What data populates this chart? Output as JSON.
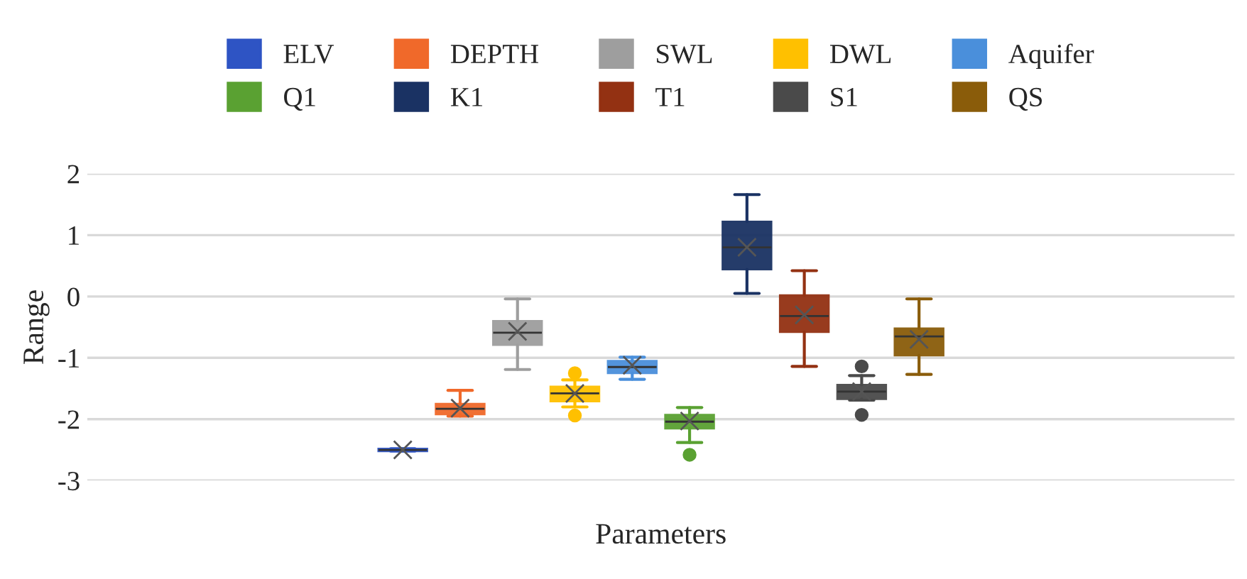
{
  "chart_data": {
    "type": "box",
    "xlabel": "Parameters",
    "ylabel": "Range",
    "categories": [
      null
    ],
    "ylim": [
      -3,
      2
    ],
    "yticks": [
      -3,
      -2,
      -1,
      0,
      1,
      2
    ],
    "grid": "y",
    "legend": "top",
    "marker": "cross",
    "series": [
      {
        "name": "ELV",
        "color": "#2e54c4",
        "boxes": [
          {
            "low": -2.52,
            "q1": -2.52,
            "median": -2.5,
            "q3": -2.48,
            "high": -2.48,
            "mean": -2.5
          }
        ]
      },
      {
        "name": "DEPTH",
        "color": "#f0692a",
        "boxes": [
          {
            "low": -1.95,
            "q1": -1.92,
            "median": -1.83,
            "q3": -1.75,
            "high": -1.53,
            "mean": -1.82
          }
        ]
      },
      {
        "name": "SWL",
        "color": "#9e9e9e",
        "boxes": [
          {
            "low": -1.19,
            "q1": -0.79,
            "median": -0.59,
            "q3": -0.4,
            "high": -0.04,
            "mean": -0.57
          }
        ]
      },
      {
        "name": "DWL",
        "color": "#ffc000",
        "boxes": [
          {
            "low": -1.8,
            "q1": -1.71,
            "median": -1.58,
            "q3": -1.47,
            "high": -1.36,
            "mean": -1.58,
            "outliers": [
              -1.25,
              -1.94
            ]
          }
        ]
      },
      {
        "name": "Aquifer",
        "color": "#4a8fdb",
        "boxes": [
          {
            "low": -1.35,
            "q1": -1.25,
            "median": -1.15,
            "q3": -1.05,
            "high": -0.99,
            "mean": -1.12
          }
        ]
      },
      {
        "name": "Q1",
        "color": "#5aa132",
        "boxes": [
          {
            "low": -2.38,
            "q1": -2.15,
            "median": -2.04,
            "q3": -1.93,
            "high": -1.81,
            "mean": -2.03,
            "outliers": [
              -2.58
            ]
          }
        ]
      },
      {
        "name": "K1",
        "color": "#1a3263",
        "boxes": [
          {
            "low": 0.05,
            "q1": 0.44,
            "median": 0.8,
            "q3": 1.22,
            "high": 1.66,
            "mean": 0.8
          }
        ]
      },
      {
        "name": "T1",
        "color": "#933112",
        "boxes": [
          {
            "low": -1.14,
            "q1": -0.58,
            "median": -0.32,
            "q3": 0.02,
            "high": 0.42,
            "mean": -0.3
          }
        ]
      },
      {
        "name": "S1",
        "color": "#4a4a4a",
        "boxes": [
          {
            "low": -1.69,
            "q1": -1.67,
            "median": -1.55,
            "q3": -1.44,
            "high": -1.29,
            "mean": -1.55,
            "outliers": [
              -1.14,
              -1.93
            ]
          }
        ]
      },
      {
        "name": "QS",
        "color": "#8a5c0a",
        "boxes": [
          {
            "low": -1.27,
            "q1": -0.96,
            "median": -0.65,
            "q3": -0.52,
            "high": -0.04,
            "mean": -0.7
          }
        ]
      }
    ]
  }
}
